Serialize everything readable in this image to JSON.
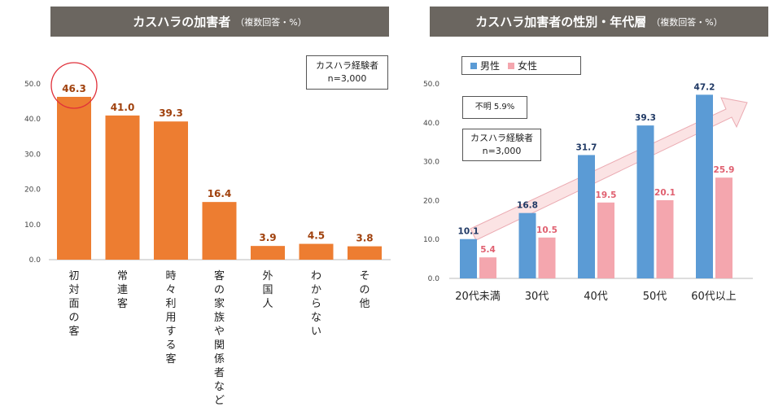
{
  "left_chart": {
    "title": "カスハラの加害者",
    "subtitle": "（複数回答・%）",
    "note_line1": "カスハラ経験者",
    "note_line2": "n=3,000",
    "bar_color": "#ed7d31",
    "label_color": "#a0410d",
    "highlight_color": "#e0303a"
  },
  "right_chart": {
    "title": "カスハラ加害者の性別・年代層",
    "subtitle": "（複数回答・%）",
    "note_line1": "カスハラ経験者",
    "note_line2": "n=3,000",
    "unknown_note": "不明 5.9%",
    "male_color": "#5b9bd5",
    "female_color": "#f4a6ae",
    "male_label_color": "#1f3864",
    "female_label_color": "#e06070"
  },
  "chart_data": [
    {
      "type": "bar",
      "title": "カスハラの加害者",
      "categories": [
        "初対面の客",
        "常連客",
        "時々利用する客",
        "客の家族や関係者など",
        "外国人",
        "わからない",
        "その他"
      ],
      "values": [
        46.3,
        41.0,
        39.3,
        16.4,
        3.9,
        4.5,
        3.8
      ],
      "value_labels": [
        "46.3",
        "41.0",
        "39.3",
        "16.4",
        "3.9",
        "4.5",
        "3.8"
      ],
      "ylim": [
        0,
        50
      ],
      "yticks": [
        "0.0",
        "10.0",
        "20.0",
        "30.0",
        "40.0",
        "50.0"
      ],
      "grid": false
    },
    {
      "type": "bar",
      "title": "カスハラ加害者の性別・年代層",
      "categories": [
        "20代未満",
        "30代",
        "40代",
        "50代",
        "60代以上"
      ],
      "series": [
        {
          "name": "男性",
          "values": [
            10.1,
            16.8,
            31.7,
            39.3,
            47.2
          ],
          "labels": [
            "10.1",
            "16.8",
            "31.7",
            "39.3",
            "47.2"
          ]
        },
        {
          "name": "女性",
          "values": [
            5.4,
            10.5,
            19.5,
            20.1,
            25.9
          ],
          "labels": [
            "5.4",
            "10.5",
            "19.5",
            "20.1",
            "25.9"
          ]
        }
      ],
      "ylim": [
        0,
        50
      ],
      "yticks": [
        "0.0",
        "10.0",
        "20.0",
        "30.0",
        "40.0",
        "50.0"
      ],
      "legend_position": "top-left",
      "grid": false
    }
  ]
}
